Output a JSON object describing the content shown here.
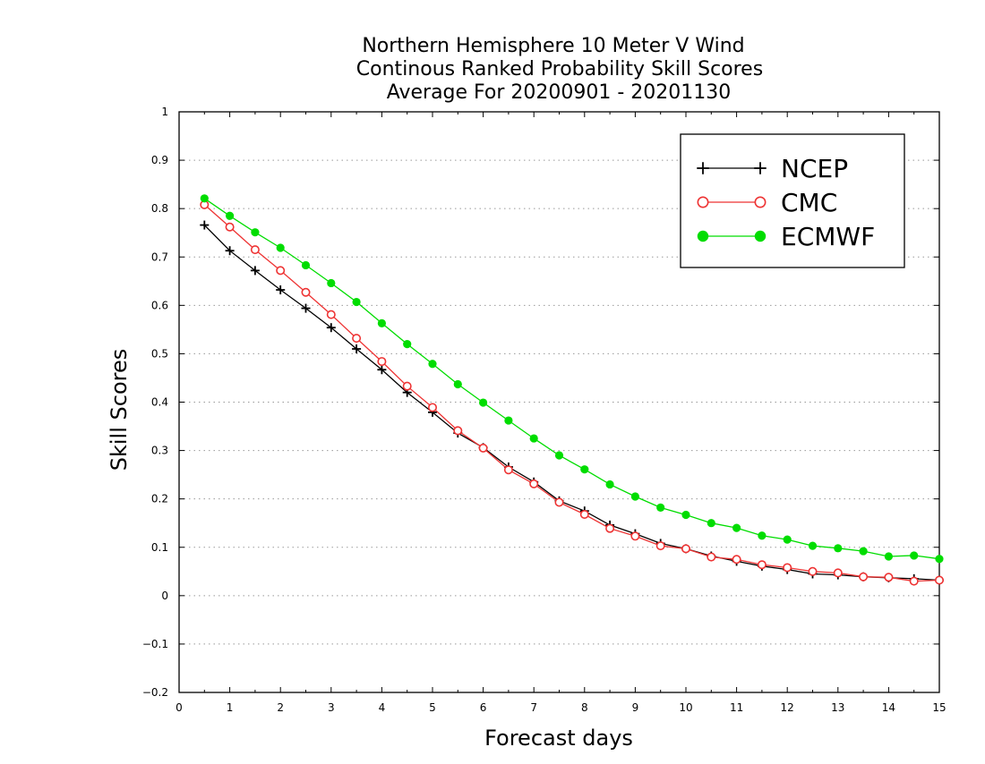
{
  "chart_data": {
    "type": "line",
    "title": [
      "Northern Hemisphere 10 Meter V Wind",
      "Continous Ranked Probability Skill Scores",
      "Average For 20200901 - 20201130"
    ],
    "xlabel": "Forecast days",
    "ylabel": "Skill Scores",
    "xlim": [
      0,
      15
    ],
    "ylim": [
      -0.2,
      1
    ],
    "xticks": [
      "0",
      "1",
      "2",
      "3",
      "4",
      "5",
      "6",
      "7",
      "8",
      "9",
      "10",
      "11",
      "12",
      "13",
      "14",
      "15"
    ],
    "yticks": [
      "−0.2",
      "−0.1",
      "0",
      "0.1",
      "0.2",
      "0.3",
      "0.4",
      "0.5",
      "0.6",
      "0.7",
      "0.8",
      "0.9",
      "1"
    ],
    "grid": "horizontal-dotted",
    "legend_position": "top-right",
    "x": [
      0.5,
      1,
      1.5,
      2,
      2.5,
      3,
      3.5,
      4,
      4.5,
      5,
      5.5,
      6,
      6.5,
      7,
      7.5,
      8,
      8.5,
      9,
      9.5,
      10,
      10.5,
      11,
      11.5,
      12,
      12.5,
      13,
      13.5,
      14,
      14.5,
      15
    ],
    "series": [
      {
        "name": "NCEP",
        "color": "#000000",
        "marker": "plus",
        "values": [
          0.766,
          0.713,
          0.672,
          0.632,
          0.594,
          0.554,
          0.51,
          0.467,
          0.42,
          0.379,
          0.336,
          0.306,
          0.266,
          0.235,
          0.196,
          0.175,
          0.146,
          0.128,
          0.108,
          0.097,
          0.082,
          0.071,
          0.061,
          0.054,
          0.045,
          0.043,
          0.039,
          0.037,
          0.035,
          0.032
        ]
      },
      {
        "name": "CMC",
        "color": "#ee3333",
        "marker": "open-circle",
        "values": [
          0.808,
          0.762,
          0.715,
          0.672,
          0.627,
          0.581,
          0.532,
          0.484,
          0.433,
          0.389,
          0.341,
          0.305,
          0.26,
          0.231,
          0.193,
          0.168,
          0.139,
          0.123,
          0.103,
          0.097,
          0.08,
          0.075,
          0.064,
          0.058,
          0.05,
          0.047,
          0.039,
          0.038,
          0.03,
          0.032
        ]
      },
      {
        "name": "ECMWF",
        "color": "#00dd00",
        "marker": "filled-circle",
        "values": [
          0.821,
          0.785,
          0.751,
          0.719,
          0.683,
          0.646,
          0.607,
          0.563,
          0.52,
          0.479,
          0.437,
          0.399,
          0.362,
          0.325,
          0.29,
          0.261,
          0.23,
          0.205,
          0.182,
          0.167,
          0.15,
          0.14,
          0.124,
          0.116,
          0.103,
          0.098,
          0.092,
          0.081,
          0.083,
          0.076
        ]
      }
    ]
  }
}
